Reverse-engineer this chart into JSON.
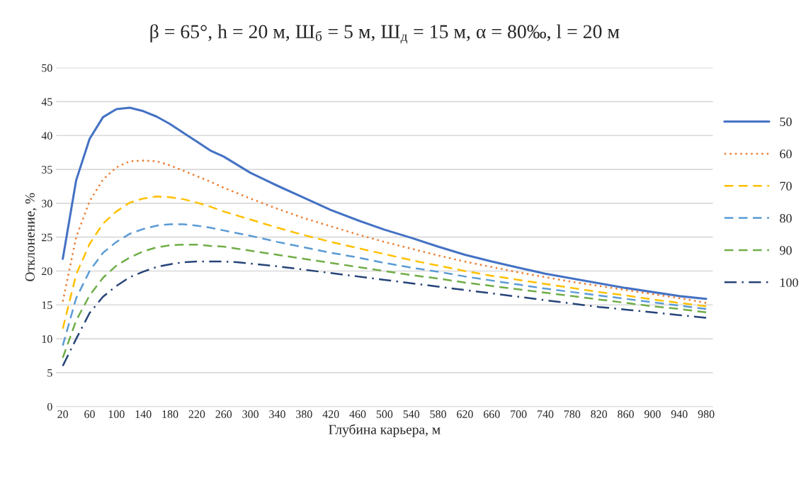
{
  "chart_data": {
    "type": "line",
    "title": "β = 65°, h = 20 м, Ш$_{б}$ = 5 м, Ш$_{д}$ = 15 м, α = 80‰, l = 20 м",
    "xlabel": "Глубина карьера, м",
    "ylabel": "Отклонение, %",
    "x": [
      20,
      40,
      60,
      80,
      100,
      120,
      140,
      160,
      180,
      200,
      220,
      240,
      260,
      280,
      300,
      340,
      380,
      420,
      460,
      500,
      540,
      580,
      620,
      660,
      700,
      740,
      780,
      820,
      860,
      900,
      940,
      980
    ],
    "series": [
      {
        "name": "50",
        "color": "#4472c4",
        "line_style": "solid",
        "values": [
          21.8,
          33.4,
          39.5,
          42.7,
          43.9,
          44.1,
          43.6,
          42.8,
          41.7,
          40.4,
          39.1,
          37.8,
          36.9,
          35.7,
          34.5,
          32.6,
          30.8,
          29.0,
          27.5,
          26.1,
          24.9,
          23.6,
          22.4,
          21.4,
          20.5,
          19.6,
          18.9,
          18.2,
          17.5,
          16.9,
          16.3,
          15.9
        ]
      },
      {
        "name": "60",
        "color": "#ed7d31",
        "line_style": "dotted",
        "values": [
          15.5,
          25.0,
          30.3,
          33.5,
          35.3,
          36.2,
          36.3,
          36.2,
          35.6,
          34.8,
          34.0,
          33.2,
          32.3,
          31.5,
          30.7,
          29.2,
          27.8,
          26.6,
          25.4,
          24.3,
          23.3,
          22.3,
          21.4,
          20.6,
          19.8,
          19.1,
          18.4,
          17.8,
          17.2,
          16.6,
          16.0,
          15.3
        ]
      },
      {
        "name": "70",
        "color": "#ffc000",
        "line_style": "dashed",
        "values": [
          11.5,
          19.5,
          24.0,
          27.0,
          28.8,
          30.1,
          30.7,
          31.0,
          30.9,
          30.6,
          30.1,
          29.5,
          28.8,
          28.2,
          27.6,
          26.4,
          25.3,
          24.3,
          23.4,
          22.5,
          21.6,
          20.8,
          20.0,
          19.3,
          18.7,
          18.1,
          17.5,
          16.9,
          16.4,
          15.8,
          15.3,
          14.8
        ]
      },
      {
        "name": "80",
        "color": "#5b9bd5",
        "line_style": "dashed",
        "values": [
          9.0,
          16.0,
          20.0,
          22.7,
          24.3,
          25.5,
          26.2,
          26.7,
          26.9,
          26.9,
          26.7,
          26.4,
          26.0,
          25.6,
          25.2,
          24.3,
          23.5,
          22.7,
          22.0,
          21.2,
          20.5,
          19.9,
          19.2,
          18.6,
          18.0,
          17.4,
          16.9,
          16.4,
          15.9,
          15.4,
          14.9,
          14.4
        ]
      },
      {
        "name": "90",
        "color": "#70ad47",
        "line_style": "dashed",
        "values": [
          7.2,
          12.7,
          16.4,
          19.0,
          20.8,
          22.0,
          22.9,
          23.5,
          23.8,
          23.9,
          23.9,
          23.7,
          23.6,
          23.3,
          23.0,
          22.4,
          21.8,
          21.2,
          20.6,
          20.0,
          19.4,
          18.9,
          18.3,
          17.8,
          17.3,
          16.8,
          16.3,
          15.8,
          15.3,
          14.8,
          14.4,
          13.9
        ]
      },
      {
        "name": "100",
        "color": "#264478",
        "line_style": "dashdot",
        "values": [
          6.0,
          10.0,
          13.8,
          16.2,
          17.8,
          19.1,
          19.9,
          20.6,
          21.0,
          21.3,
          21.4,
          21.4,
          21.4,
          21.3,
          21.1,
          20.7,
          20.2,
          19.7,
          19.2,
          18.7,
          18.2,
          17.7,
          17.2,
          16.7,
          16.2,
          15.7,
          15.2,
          14.7,
          14.3,
          13.9,
          13.5,
          13.1
        ]
      }
    ],
    "xlim": [
      10,
      990
    ],
    "xticks": [
      20,
      60,
      100,
      140,
      180,
      220,
      260,
      300,
      340,
      380,
      420,
      460,
      500,
      540,
      580,
      620,
      660,
      700,
      740,
      780,
      820,
      860,
      900,
      940,
      980
    ],
    "ylim": [
      0,
      50
    ],
    "yticks": [
      0,
      5,
      10,
      15,
      20,
      25,
      30,
      35,
      40,
      45,
      50
    ],
    "grid": "y",
    "legend": "right"
  }
}
